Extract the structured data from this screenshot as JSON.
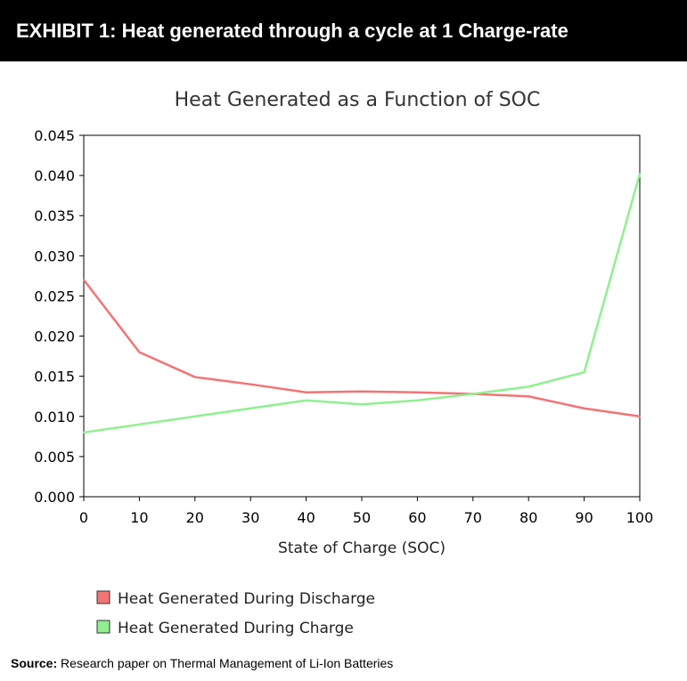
{
  "header": {
    "title": "EXHIBIT 1: Heat generated through a cycle at 1 Charge-rate"
  },
  "source": {
    "label": "Source:",
    "text": "Research paper on Thermal Management of Li-Ion Batteries"
  },
  "chart_data": {
    "type": "line",
    "title": "Heat Generated as a Function of SOC",
    "xlabel": "State of Charge (SOC)",
    "ylabel": "",
    "x": [
      0,
      10,
      20,
      30,
      40,
      50,
      60,
      70,
      80,
      90,
      100
    ],
    "xlim": [
      0,
      100
    ],
    "ylim": [
      0,
      0.045
    ],
    "yticks": [
      "0.000",
      "0.005",
      "0.010",
      "0.015",
      "0.020",
      "0.025",
      "0.030",
      "0.035",
      "0.040",
      "0.045"
    ],
    "xticks": [
      "0",
      "10",
      "20",
      "30",
      "40",
      "50",
      "60",
      "70",
      "80",
      "90",
      "100"
    ],
    "grid": false,
    "legend_position": "bottom-left",
    "series": [
      {
        "name": "Heat Generated During Discharge",
        "color": "#f27474",
        "values": [
          0.027,
          0.018,
          0.0149,
          0.014,
          0.013,
          0.0131,
          0.013,
          0.0128,
          0.0125,
          0.011,
          0.01
        ]
      },
      {
        "name": "Heat Generated During Charge",
        "color": "#8ff08f",
        "values": [
          0.008,
          0.009,
          0.01,
          0.011,
          0.012,
          0.0115,
          0.012,
          0.0128,
          0.0137,
          0.0155,
          0.0402
        ]
      }
    ]
  }
}
